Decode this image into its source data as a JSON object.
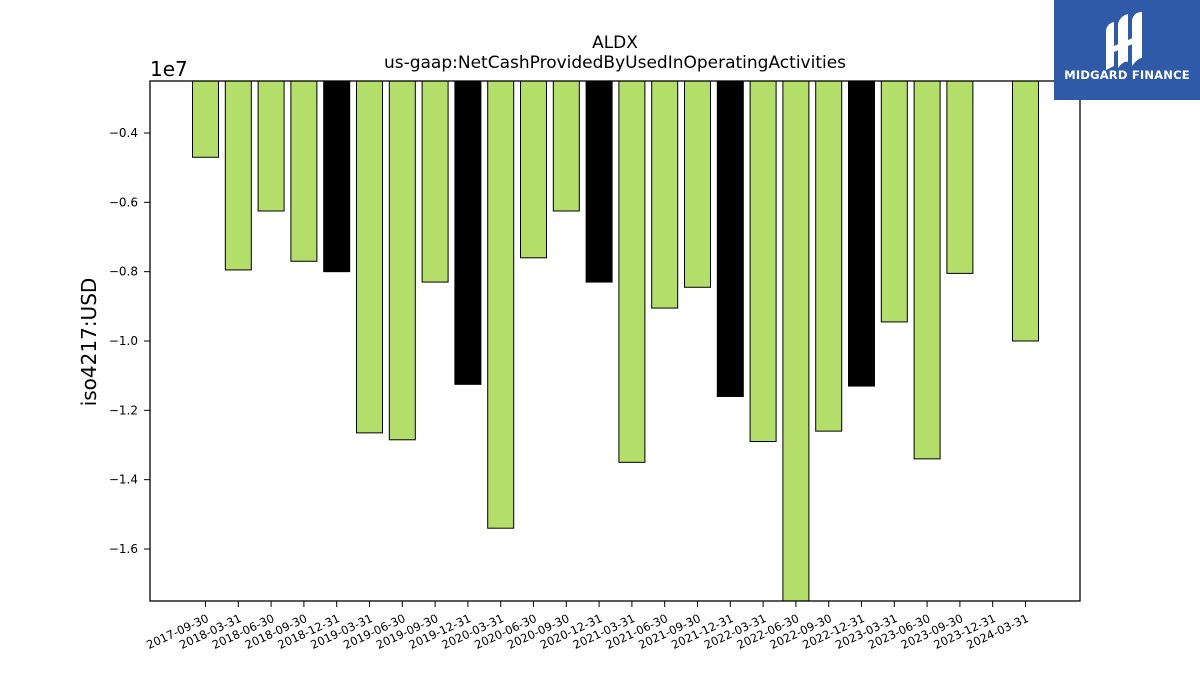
{
  "chart_data": {
    "type": "bar",
    "title": "ALDX",
    "subtitle": "us-gaap:NetCashProvidedByUsedInOperatingActivities",
    "ylabel": "iso4217:USD",
    "xlabel": "",
    "offset_label": "1e7",
    "ylim": [
      -17500000.0,
      -2500000.0
    ],
    "yticks": [
      -0.4,
      -0.6,
      -0.8,
      -1.0,
      -1.2,
      -1.4,
      -1.6
    ],
    "grid": false,
    "colors": {
      "default": "#b3de69",
      "highlight": "#000000"
    },
    "categories": [
      "2017-09-30",
      "2018-03-31",
      "2018-06-30",
      "2018-09-30",
      "2018-12-31",
      "2019-03-31",
      "2019-06-30",
      "2019-09-30",
      "2019-12-31",
      "2020-03-31",
      "2020-06-30",
      "2020-09-30",
      "2020-12-31",
      "2021-03-31",
      "2021-06-30",
      "2021-09-30",
      "2021-12-31",
      "2022-03-31",
      "2022-06-30",
      "2022-09-30",
      "2022-12-31",
      "2023-03-31",
      "2023-06-30",
      "2023-09-30",
      "2023-12-31",
      "2024-03-31"
    ],
    "bars": [
      {
        "value": -4700000,
        "highlight": false
      },
      {
        "value": -7950000,
        "highlight": false
      },
      {
        "value": -6250000,
        "highlight": false
      },
      {
        "value": -7700000,
        "highlight": false
      },
      {
        "value": -8000000,
        "highlight": true
      },
      {
        "value": -12650000,
        "highlight": false
      },
      {
        "value": -12850000,
        "highlight": false
      },
      {
        "value": -8300000,
        "highlight": false
      },
      {
        "value": -11250000,
        "highlight": true
      },
      {
        "value": -15400000,
        "highlight": false
      },
      {
        "value": -7600000,
        "highlight": false
      },
      {
        "value": -6250000,
        "highlight": false
      },
      {
        "value": -8300000,
        "highlight": true
      },
      {
        "value": -13500000,
        "highlight": false
      },
      {
        "value": -9050000,
        "highlight": false
      },
      {
        "value": -8450000,
        "highlight": false
      },
      {
        "value": -11600000,
        "highlight": true
      },
      {
        "value": -12900000,
        "highlight": false
      },
      {
        "value": -17500000,
        "highlight": false
      },
      {
        "value": -12600000,
        "highlight": false
      },
      {
        "value": -11300000,
        "highlight": true
      },
      {
        "value": -9450000,
        "highlight": false
      },
      {
        "value": -13400000,
        "highlight": false
      },
      {
        "value": -8050000,
        "highlight": false
      },
      {
        "value": null,
        "highlight": false
      },
      {
        "value": -10000000,
        "highlight": false
      }
    ]
  },
  "branding": {
    "company": "MIDGARD FINANCE",
    "logo_icon": "midgard-logo-icon",
    "background": "#2f5aa8"
  }
}
